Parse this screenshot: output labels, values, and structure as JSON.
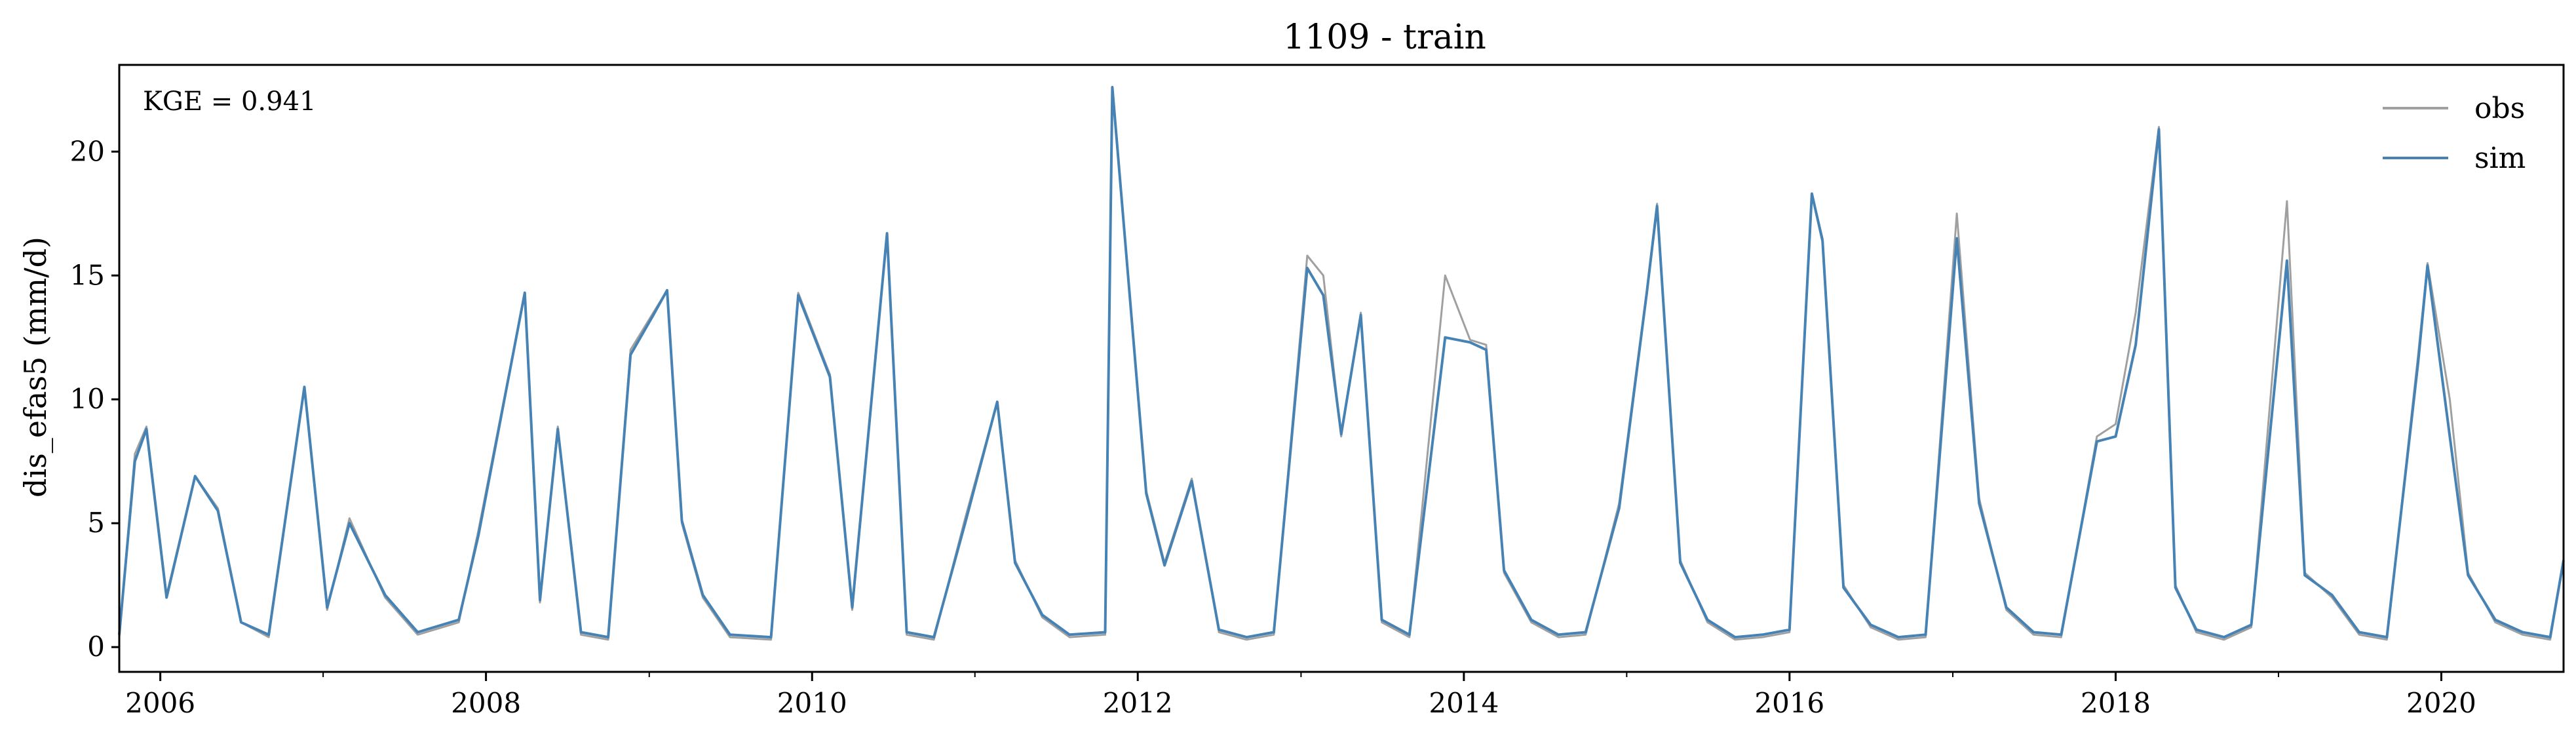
{
  "chart_data": {
    "type": "line",
    "title": "1109 - train",
    "xlabel": "",
    "ylabel": "dis_efas5 (mm/d)",
    "annotation": "KGE = 0.941",
    "xlim": [
      "2005-10-01",
      "2020-10-01"
    ],
    "ylim": [
      -1,
      23.5
    ],
    "x_ticks": [
      "2006",
      "2008",
      "2010",
      "2012",
      "2014",
      "2016",
      "2018",
      "2020"
    ],
    "y_ticks": [
      "0",
      "5",
      "10",
      "15",
      "20"
    ],
    "grid": false,
    "legend": {
      "position": "top-right",
      "entries": [
        "obs",
        "sim"
      ]
    },
    "colors": {
      "obs": "#a0a0a0",
      "sim": "#4682b4"
    },
    "series": [
      {
        "name": "obs",
        "x": [
          "2005-10-01",
          "2005-11-05",
          "2005-12-01",
          "2006-01-15",
          "2006-03-20",
          "2006-05-10",
          "2006-07-01",
          "2006-09-01",
          "2006-11-20",
          "2007-01-10",
          "2007-03-01",
          "2007-05-20",
          "2007-08-01",
          "2007-11-01",
          "2007-12-15",
          "2008-03-28",
          "2008-05-01",
          "2008-06-10",
          "2008-08-01",
          "2008-10-01",
          "2008-11-20",
          "2009-01-10",
          "2009-02-10",
          "2009-03-15",
          "2009-05-01",
          "2009-07-01",
          "2009-10-01",
          "2009-12-01",
          "2010-02-10",
          "2010-04-01",
          "2010-06-18",
          "2010-08-01",
          "2010-10-01",
          "2010-12-10",
          "2011-02-20",
          "2011-04-01",
          "2011-06-01",
          "2011-08-01",
          "2011-10-20",
          "2011-11-05",
          "2012-01-20",
          "2012-03-01",
          "2012-05-01",
          "2012-07-01",
          "2012-09-01",
          "2012-11-01",
          "2013-01-15",
          "2013-02-20",
          "2013-04-01",
          "2013-05-15",
          "2013-07-01",
          "2013-09-01",
          "2013-11-20",
          "2014-01-15",
          "2014-02-20",
          "2014-04-01",
          "2014-06-01",
          "2014-08-01",
          "2014-10-01",
          "2014-12-15",
          "2015-02-15",
          "2015-03-10",
          "2015-05-01",
          "2015-07-01",
          "2015-09-01",
          "2015-11-01",
          "2016-01-01",
          "2016-02-20",
          "2016-03-15",
          "2016-05-01",
          "2016-07-01",
          "2016-09-01",
          "2016-11-01",
          "2017-01-10",
          "2017-03-01",
          "2017-05-01",
          "2017-07-01",
          "2017-09-01",
          "2017-11-20",
          "2018-01-01",
          "2018-02-15",
          "2018-04-08",
          "2018-05-15",
          "2018-07-01",
          "2018-09-01",
          "2018-11-01",
          "2019-01-20",
          "2019-03-01",
          "2019-05-01",
          "2019-07-01",
          "2019-09-01",
          "2019-11-10",
          "2019-12-01",
          "2020-01-20",
          "2020-03-01",
          "2020-05-01",
          "2020-07-01",
          "2020-09-01",
          "2020-10-01"
        ],
        "y": [
          0.4,
          7.8,
          8.9,
          2.1,
          6.9,
          5.6,
          1.0,
          0.4,
          10.5,
          1.5,
          5.2,
          2.0,
          0.5,
          1.0,
          4.7,
          14.3,
          1.8,
          8.9,
          0.5,
          0.3,
          12.0,
          13.5,
          14.4,
          5.0,
          2.0,
          0.4,
          0.3,
          14.3,
          11.0,
          1.5,
          16.7,
          0.5,
          0.3,
          5.2,
          9.9,
          3.5,
          1.2,
          0.4,
          0.5,
          22.6,
          6.3,
          3.4,
          6.8,
          0.6,
          0.3,
          0.5,
          15.8,
          15.0,
          8.5,
          13.5,
          1.0,
          0.4,
          15.0,
          12.4,
          12.2,
          3.0,
          1.0,
          0.4,
          0.5,
          5.8,
          14.4,
          17.9,
          3.5,
          1.0,
          0.3,
          0.4,
          0.6,
          18.3,
          16.5,
          2.5,
          0.8,
          0.3,
          0.4,
          17.5,
          6.0,
          1.5,
          0.5,
          0.4,
          8.5,
          9.0,
          13.5,
          21.0,
          2.5,
          0.6,
          0.3,
          0.8,
          18.0,
          3.0,
          2.0,
          0.5,
          0.3,
          11.8,
          15.5,
          10.0,
          3.0,
          1.0,
          0.5,
          0.3,
          3.5
        ]
      },
      {
        "name": "sim",
        "x": [
          "2005-10-01",
          "2005-11-05",
          "2005-12-01",
          "2006-01-15",
          "2006-03-20",
          "2006-05-10",
          "2006-07-01",
          "2006-09-01",
          "2006-11-20",
          "2007-01-10",
          "2007-03-01",
          "2007-05-20",
          "2007-08-01",
          "2007-11-01",
          "2007-12-15",
          "2008-03-28",
          "2008-05-01",
          "2008-06-10",
          "2008-08-01",
          "2008-10-01",
          "2008-11-20",
          "2009-01-10",
          "2009-02-10",
          "2009-03-15",
          "2009-05-01",
          "2009-07-01",
          "2009-10-01",
          "2009-12-01",
          "2010-02-10",
          "2010-04-01",
          "2010-06-18",
          "2010-08-01",
          "2010-10-01",
          "2010-12-10",
          "2011-02-20",
          "2011-04-01",
          "2011-06-01",
          "2011-08-01",
          "2011-10-20",
          "2011-11-05",
          "2012-01-20",
          "2012-03-01",
          "2012-05-01",
          "2012-07-01",
          "2012-09-01",
          "2012-11-01",
          "2013-01-15",
          "2013-02-20",
          "2013-04-01",
          "2013-05-15",
          "2013-07-01",
          "2013-09-01",
          "2013-11-20",
          "2014-01-15",
          "2014-02-20",
          "2014-04-01",
          "2014-06-01",
          "2014-08-01",
          "2014-10-01",
          "2014-12-15",
          "2015-02-15",
          "2015-03-10",
          "2015-05-01",
          "2015-07-01",
          "2015-09-01",
          "2015-11-01",
          "2016-01-01",
          "2016-02-20",
          "2016-03-15",
          "2016-05-01",
          "2016-07-01",
          "2016-09-01",
          "2016-11-01",
          "2017-01-10",
          "2017-03-01",
          "2017-05-01",
          "2017-07-01",
          "2017-09-01",
          "2017-11-20",
          "2018-01-01",
          "2018-02-15",
          "2018-04-08",
          "2018-05-15",
          "2018-07-01",
          "2018-09-01",
          "2018-11-01",
          "2019-01-20",
          "2019-03-01",
          "2019-05-01",
          "2019-07-01",
          "2019-09-01",
          "2019-11-10",
          "2019-12-01",
          "2020-01-20",
          "2020-03-01",
          "2020-05-01",
          "2020-07-01",
          "2020-09-01",
          "2020-10-01"
        ],
        "y": [
          0.5,
          7.5,
          8.8,
          2.0,
          6.9,
          5.5,
          1.0,
          0.5,
          10.5,
          1.6,
          5.0,
          2.1,
          0.6,
          1.1,
          4.5,
          14.3,
          1.9,
          8.8,
          0.6,
          0.4,
          11.8,
          13.4,
          14.4,
          5.1,
          2.1,
          0.5,
          0.4,
          14.2,
          10.9,
          1.6,
          16.7,
          0.6,
          0.4,
          5.0,
          9.9,
          3.4,
          1.3,
          0.5,
          0.6,
          22.6,
          6.2,
          3.3,
          6.7,
          0.7,
          0.4,
          0.6,
          15.3,
          14.2,
          8.6,
          13.4,
          1.1,
          0.5,
          12.5,
          12.3,
          12.0,
          3.1,
          1.1,
          0.5,
          0.6,
          5.6,
          14.3,
          17.8,
          3.4,
          1.1,
          0.4,
          0.5,
          0.7,
          18.3,
          16.4,
          2.4,
          0.9,
          0.4,
          0.5,
          16.5,
          5.8,
          1.6,
          0.6,
          0.5,
          8.3,
          8.5,
          12.2,
          20.9,
          2.4,
          0.7,
          0.4,
          0.9,
          15.6,
          2.9,
          2.1,
          0.6,
          0.4,
          11.5,
          15.4,
          8.5,
          2.9,
          1.1,
          0.6,
          0.4,
          3.5
        ]
      }
    ]
  }
}
